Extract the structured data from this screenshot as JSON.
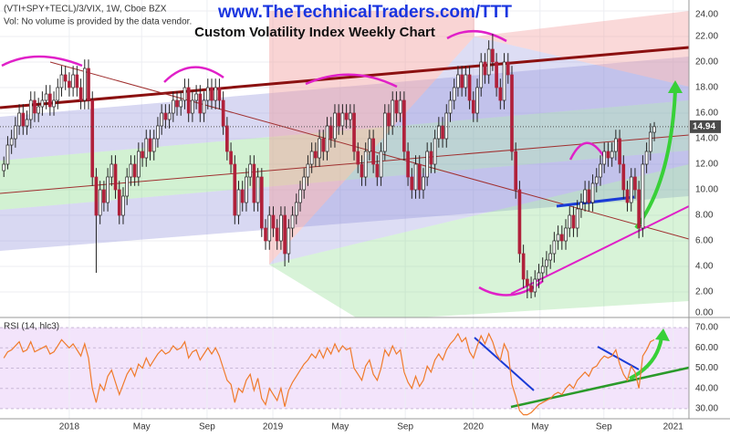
{
  "chart_data": [
    {
      "type": "candlestick",
      "title": "www.TheTechnicalTraders.com/TTT",
      "subtitle": "Custom Volatility Index Weekly Chart",
      "symbol_label": "(VTI+SPY+TECL)/3/VIX, 1W, Cboe BZX",
      "note": "Vol: No volume is provided by the data vendor.",
      "up_color": "#ffffff",
      "down_color": "#b0203a",
      "xlim": [
        -1,
        178
      ],
      "ylim": [
        0,
        24
      ],
      "yticks": [
        {
          "value": 0,
          "label": "0.00"
        },
        {
          "value": 2,
          "label": "2.00"
        },
        {
          "value": 4,
          "label": "4.00"
        },
        {
          "value": 6,
          "label": "6.00"
        },
        {
          "value": 8,
          "label": "8.00"
        },
        {
          "value": 10,
          "label": "10.00"
        },
        {
          "value": 12,
          "label": "12.00"
        },
        {
          "value": 14,
          "label": "14.00"
        },
        {
          "value": 16,
          "label": "16.00"
        },
        {
          "value": 18,
          "label": "18.00"
        },
        {
          "value": 20,
          "label": "20.00"
        },
        {
          "value": 22,
          "label": "22.00"
        },
        {
          "value": 24,
          "label": "24.00"
        }
      ],
      "ohlc": [
        [
          11.5,
          12.6,
          11,
          12
        ],
        [
          12,
          14.2,
          11.6,
          13.5
        ],
        [
          13.5,
          14.7,
          12.8,
          14
        ],
        [
          14,
          15.7,
          13.3,
          15
        ],
        [
          15,
          16.7,
          14.3,
          16
        ],
        [
          16,
          16.7,
          14.3,
          15
        ],
        [
          15,
          16.2,
          14.3,
          15.5
        ],
        [
          15.5,
          17.7,
          14.8,
          17
        ],
        [
          17,
          17.7,
          15.3,
          16
        ],
        [
          16,
          17.2,
          15.3,
          16.5
        ],
        [
          16.5,
          17.7,
          15.8,
          17
        ],
        [
          17,
          18.2,
          16.3,
          17.5
        ],
        [
          17.5,
          18.2,
          15.8,
          16.5
        ],
        [
          16.5,
          17.7,
          15.8,
          17
        ],
        [
          17,
          18.7,
          16.3,
          18
        ],
        [
          18,
          19.7,
          17.3,
          19
        ],
        [
          19,
          19.7,
          17.8,
          18.5
        ],
        [
          18.5,
          19.2,
          17.3,
          18
        ],
        [
          18,
          19.7,
          17.3,
          19
        ],
        [
          19,
          19.7,
          17.3,
          18
        ],
        [
          18,
          18.7,
          16.3,
          17
        ],
        [
          17,
          20.2,
          16.3,
          19.5
        ],
        [
          19.5,
          20.2,
          16.3,
          17
        ],
        [
          17,
          17.7,
          10.3,
          11
        ],
        [
          11,
          11.7,
          3.5,
          8
        ],
        [
          8,
          10.7,
          7.3,
          10
        ],
        [
          10,
          10.7,
          8.3,
          9
        ],
        [
          9,
          11.7,
          8.3,
          11
        ],
        [
          11,
          12.7,
          10.3,
          12
        ],
        [
          12,
          12.7,
          9.3,
          10
        ],
        [
          10,
          10.7,
          7.3,
          8
        ],
        [
          8,
          10.2,
          7.3,
          9.5
        ],
        [
          9.5,
          11.7,
          8.8,
          11
        ],
        [
          11,
          12.7,
          10.3,
          12
        ],
        [
          12,
          12.7,
          10.3,
          11
        ],
        [
          11,
          13.7,
          10.3,
          13
        ],
        [
          13,
          13.7,
          11.8,
          12.5
        ],
        [
          12.5,
          14.7,
          11.8,
          14
        ],
        [
          14,
          14.7,
          12.3,
          13
        ],
        [
          13,
          14.7,
          12.3,
          14
        ],
        [
          14,
          15.7,
          13.3,
          15
        ],
        [
          15,
          16.7,
          14.3,
          16
        ],
        [
          16,
          16.7,
          14.8,
          15.5
        ],
        [
          15.5,
          16.7,
          14.8,
          16
        ],
        [
          16,
          17.7,
          15.3,
          17
        ],
        [
          17,
          17.7,
          15.8,
          16.5
        ],
        [
          16.5,
          17.7,
          15.8,
          17
        ],
        [
          17,
          18.7,
          16.3,
          18
        ],
        [
          18,
          18.7,
          15.3,
          16
        ],
        [
          16,
          17.7,
          15.3,
          17
        ],
        [
          17,
          18.2,
          16.3,
          17.5
        ],
        [
          17.5,
          18.2,
          15.3,
          16
        ],
        [
          16,
          17.7,
          15.3,
          17
        ],
        [
          17,
          18.7,
          16.3,
          18
        ],
        [
          18,
          18.7,
          16.3,
          17
        ],
        [
          17,
          18.7,
          16.3,
          18
        ],
        [
          18,
          18.7,
          16.3,
          17
        ],
        [
          17,
          17.7,
          14.3,
          15
        ],
        [
          15,
          15.7,
          12.3,
          13
        ],
        [
          13,
          13.7,
          11.3,
          12
        ],
        [
          12,
          12.7,
          7.3,
          8
        ],
        [
          8,
          10.7,
          7.3,
          10
        ],
        [
          10,
          10.7,
          8.3,
          9
        ],
        [
          9,
          11.7,
          8.3,
          11
        ],
        [
          11,
          12.7,
          10.3,
          12
        ],
        [
          12,
          12.7,
          8.3,
          9
        ],
        [
          9,
          11.7,
          8.3,
          11
        ],
        [
          11,
          11.7,
          6.3,
          7
        ],
        [
          7,
          7.7,
          5.3,
          6
        ],
        [
          6,
          8.7,
          5.3,
          8
        ],
        [
          8,
          8.7,
          6.3,
          7
        ],
        [
          7,
          7.7,
          5.3,
          6
        ],
        [
          6,
          8.7,
          5.3,
          8
        ],
        [
          8,
          8.7,
          4,
          5
        ],
        [
          5,
          7.7,
          4.3,
          7
        ],
        [
          7,
          8.7,
          6.3,
          8
        ],
        [
          8,
          9.7,
          7.3,
          9
        ],
        [
          9,
          10.7,
          8.3,
          10
        ],
        [
          10,
          11.7,
          9.3,
          11
        ],
        [
          11,
          12.7,
          10.3,
          12
        ],
        [
          12,
          13.7,
          11.3,
          13
        ],
        [
          13,
          13.7,
          11.8,
          12.5
        ],
        [
          12.5,
          14.7,
          11.8,
          14
        ],
        [
          14,
          14.7,
          12.3,
          13
        ],
        [
          13,
          15.7,
          12.3,
          15
        ],
        [
          15,
          15.7,
          13.3,
          14
        ],
        [
          14,
          16.7,
          13.3,
          16
        ],
        [
          16,
          16.7,
          14.3,
          15
        ],
        [
          15,
          16.7,
          14.3,
          16
        ],
        [
          16,
          16.7,
          14.8,
          15.5
        ],
        [
          15.5,
          16.7,
          14.8,
          16
        ],
        [
          16,
          16.7,
          12.3,
          13
        ],
        [
          13,
          13.7,
          11.3,
          12
        ],
        [
          12,
          12.7,
          10.3,
          11
        ],
        [
          11,
          13.7,
          10.3,
          13
        ],
        [
          13,
          14.7,
          12.3,
          14
        ],
        [
          14,
          14.7,
          11.3,
          12
        ],
        [
          12,
          12.7,
          10.3,
          11
        ],
        [
          11,
          13.7,
          10.3,
          13
        ],
        [
          13,
          16.7,
          12.3,
          16
        ],
        [
          16,
          16.7,
          14.3,
          15
        ],
        [
          15,
          17.7,
          14.3,
          17
        ],
        [
          17,
          17.7,
          15.3,
          16
        ],
        [
          16,
          17.7,
          15.3,
          17
        ],
        [
          17,
          17.7,
          12.3,
          13
        ],
        [
          13,
          13.7,
          10.3,
          11
        ],
        [
          11,
          11.7,
          9.3,
          10
        ],
        [
          10,
          12.7,
          9.3,
          12
        ],
        [
          12,
          12.7,
          9.3,
          10
        ],
        [
          10,
          11.7,
          9.3,
          11
        ],
        [
          11,
          13.7,
          10.3,
          13
        ],
        [
          13,
          13.7,
          11.3,
          12
        ],
        [
          12,
          14.7,
          11.3,
          14
        ],
        [
          14,
          15.7,
          13.3,
          15
        ],
        [
          15,
          15.7,
          13.3,
          14
        ],
        [
          14,
          16.7,
          13.3,
          16
        ],
        [
          16,
          17.7,
          15.3,
          17
        ],
        [
          17,
          18.7,
          16.3,
          18
        ],
        [
          18,
          19.7,
          17.3,
          19
        ],
        [
          19,
          19.7,
          17.3,
          18
        ],
        [
          18,
          19.7,
          17.3,
          19
        ],
        [
          19,
          19.7,
          16.3,
          17
        ],
        [
          17,
          17.7,
          15.3,
          16
        ],
        [
          16,
          18.7,
          15.3,
          18
        ],
        [
          18,
          20.7,
          17.3,
          20
        ],
        [
          20,
          20.7,
          18.3,
          19
        ],
        [
          19,
          21.7,
          18.3,
          21
        ],
        [
          21,
          22.2,
          19.3,
          20
        ],
        [
          20,
          20.7,
          17.3,
          18
        ],
        [
          18,
          18.7,
          16.3,
          17
        ],
        [
          17,
          20.7,
          16.3,
          20
        ],
        [
          20,
          20.7,
          18.3,
          19
        ],
        [
          19,
          19.7,
          12.3,
          13
        ],
        [
          13,
          13.7,
          9.3,
          10
        ],
        [
          10,
          10.7,
          4.3,
          5
        ],
        [
          5,
          5.7,
          2.3,
          3
        ],
        [
          3,
          3.7,
          1.5,
          2.5
        ],
        [
          2.5,
          3.2,
          1.5,
          2
        ],
        [
          2,
          3.7,
          1.6,
          3
        ],
        [
          3,
          4.2,
          2.3,
          3.5
        ],
        [
          3.5,
          4.7,
          2.8,
          4
        ],
        [
          4,
          5.2,
          3.3,
          4.5
        ],
        [
          4.5,
          5.7,
          3.8,
          5
        ],
        [
          5,
          6.7,
          4.3,
          6
        ],
        [
          6,
          7.2,
          5.3,
          6.5
        ],
        [
          6.5,
          7.2,
          5.3,
          6
        ],
        [
          6,
          7.7,
          5.3,
          7
        ],
        [
          7,
          8.7,
          6.3,
          8
        ],
        [
          8,
          8.7,
          6.3,
          7
        ],
        [
          7,
          9.2,
          6.3,
          8.5
        ],
        [
          8.5,
          9.7,
          7.8,
          9
        ],
        [
          9,
          10.7,
          8.3,
          10
        ],
        [
          10,
          10.7,
          8.3,
          9
        ],
        [
          9,
          11.2,
          8.3,
          10.5
        ],
        [
          10.5,
          11.7,
          9.8,
          11
        ],
        [
          11,
          12.7,
          10.3,
          12
        ],
        [
          12,
          13.7,
          11.3,
          13
        ],
        [
          13,
          13.7,
          11.8,
          12.5
        ],
        [
          12.5,
          13.7,
          11.8,
          13
        ],
        [
          13,
          14.7,
          12.3,
          14
        ],
        [
          14,
          14.7,
          11.3,
          12
        ],
        [
          12,
          12.7,
          9.3,
          10
        ],
        [
          10,
          10.7,
          8.3,
          9
        ],
        [
          9,
          11.7,
          8.3,
          11
        ],
        [
          11,
          11.7,
          9.3,
          10
        ],
        [
          10,
          10.7,
          6.2,
          7
        ],
        [
          7,
          12.7,
          6.3,
          12
        ],
        [
          12,
          13.7,
          11.3,
          13
        ],
        [
          13,
          15.2,
          12.3,
          14.5
        ],
        [
          14.5,
          15.3,
          13.8,
          14.94
        ]
      ]
    },
    {
      "type": "line",
      "title": "RSI (14, hlc3)",
      "color": "#f07a2a",
      "band": [
        30,
        70
      ],
      "band_color": "#f3e4fb",
      "xlim": [
        -1,
        178
      ],
      "ylim": [
        25,
        75
      ],
      "xticks": [
        {
          "value": 17,
          "label": "2018"
        },
        {
          "value": 35.8,
          "label": "May"
        },
        {
          "value": 52.8,
          "label": "Sep"
        },
        {
          "value": 69.9,
          "label": "2019"
        },
        {
          "value": 87.4,
          "label": "May"
        },
        {
          "value": 104.3,
          "label": "Sep"
        },
        {
          "value": 122,
          "label": "2020"
        },
        {
          "value": 139.3,
          "label": "May"
        },
        {
          "value": 155.9,
          "label": "Sep"
        },
        {
          "value": 173.9,
          "label": "2021"
        }
      ],
      "yticks": [
        {
          "value": 30,
          "label": "30.00"
        },
        {
          "value": 40,
          "label": "40.00"
        },
        {
          "value": 50,
          "label": "50.00"
        },
        {
          "value": 60,
          "label": "60.00"
        },
        {
          "value": 70,
          "label": "70.00"
        }
      ],
      "values": [
        55,
        58,
        59,
        61,
        63,
        58,
        59,
        63,
        58,
        59,
        60,
        61,
        57,
        58,
        61,
        64,
        62,
        60,
        62,
        59,
        56,
        62,
        55,
        40,
        33,
        42,
        39,
        46,
        49,
        43,
        37,
        42,
        47,
        50,
        46,
        52,
        50,
        55,
        51,
        54,
        57,
        59,
        57,
        58,
        61,
        59,
        60,
        63,
        55,
        58,
        59,
        54,
        57,
        60,
        57,
        60,
        56,
        50,
        44,
        42,
        33,
        40,
        38,
        44,
        47,
        39,
        45,
        35,
        32,
        40,
        37,
        34,
        40,
        31,
        39,
        43,
        46,
        49,
        52,
        54,
        57,
        55,
        59,
        55,
        60,
        57,
        62,
        58,
        61,
        59,
        60,
        50,
        47,
        44,
        51,
        54,
        47,
        44,
        50,
        59,
        56,
        61,
        57,
        59,
        48,
        43,
        40,
        46,
        41,
        44,
        51,
        48,
        54,
        57,
        54,
        59,
        62,
        64,
        67,
        63,
        65,
        58,
        55,
        61,
        66,
        62,
        67,
        63,
        57,
        54,
        62,
        58,
        42,
        36,
        29,
        27,
        27,
        28,
        30,
        32,
        33,
        34,
        35,
        37,
        38,
        37,
        40,
        42,
        40,
        44,
        46,
        48,
        46,
        50,
        51,
        54,
        56,
        55,
        56,
        59,
        52,
        47,
        44,
        51,
        48,
        40,
        56,
        59,
        63,
        64
      ]
    }
  ]
}
